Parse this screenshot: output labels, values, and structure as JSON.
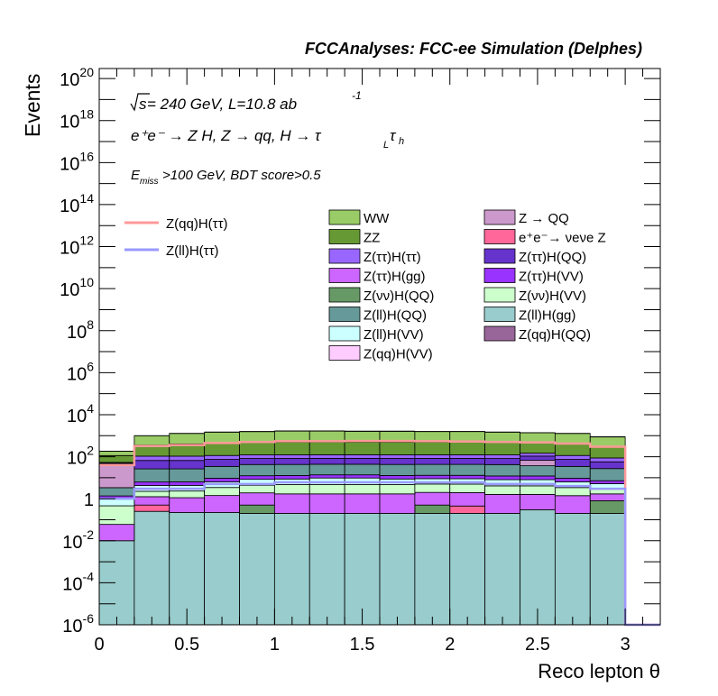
{
  "chart_data": {
    "type": "bar",
    "header": "FCCAnalyses: FCC-ee Simulation (Delphes)",
    "annotations": {
      "line1_sqrt": "s",
      "line1_rest": " = 240 GeV, L=10.8 ab",
      "line1_sup": "-1",
      "line2": "e⁺e⁻ → Z H, Z → qq, H → τ",
      "line2_sub1": "L",
      "line2_tau": "τ",
      "line2_sub2": "h",
      "line3_e": "E",
      "line3_sub": "miss",
      "line3_rest": ">100 GeV, BDT score>0.5"
    },
    "xlabel": "Reco lepton θ",
    "ylabel": "Events",
    "xlim": [
      0,
      3.2
    ],
    "ylim": [
      1e-06,
      3e+20
    ],
    "log_y": true,
    "grid": false,
    "legend_position": "top",
    "x_tick_labels": [
      "0",
      "0.5",
      "1",
      "1.5",
      "2",
      "2.5",
      "3"
    ],
    "x_tick_values": [
      0,
      0.5,
      1,
      1.5,
      2,
      2.5,
      3
    ],
    "y_tick_labels": [
      {
        "base": "10",
        "exp": "-6",
        "value": 1e-06
      },
      {
        "base": "10",
        "exp": "-4",
        "value": 0.0001
      },
      {
        "base": "10",
        "exp": "-2",
        "value": 0.01
      },
      {
        "base": "1",
        "exp": "",
        "value": 1
      },
      {
        "base": "10",
        "exp": "2",
        "value": 100.0
      },
      {
        "base": "10",
        "exp": "4",
        "value": 10000.0
      },
      {
        "base": "10",
        "exp": "6",
        "value": 1000000.0
      },
      {
        "base": "10",
        "exp": "8",
        "value": 100000000.0
      },
      {
        "base": "10",
        "exp": "10",
        "value": 10000000000.0
      },
      {
        "base": "10",
        "exp": "12",
        "value": 1000000000000.0
      },
      {
        "base": "10",
        "exp": "14",
        "value": 100000000000000.0
      },
      {
        "base": "10",
        "exp": "16",
        "value": 1e+16
      },
      {
        "base": "10",
        "exp": "18",
        "value": 1e+18
      },
      {
        "base": "10",
        "exp": "20",
        "value": 1e+20
      }
    ],
    "bin_edges": [
      0,
      0.2,
      0.4,
      0.6,
      0.8,
      1.0,
      1.2,
      1.4,
      1.6,
      1.8,
      2.0,
      2.2,
      2.4,
      2.6,
      2.8,
      3.0,
      3.2
    ],
    "stack_top_values": [
      180,
      1000,
      1300,
      1500,
      1600,
      1700,
      1700,
      1650,
      1650,
      1600,
      1600,
      1500,
      1400,
      1300,
      900,
      0
    ],
    "stack_layers": [
      {
        "name": "Z(ll)H(gg)",
        "color": "#99cccc",
        "values": [
          0.01,
          0.25,
          0.22,
          0.22,
          0.2,
          0.2,
          0.2,
          0.2,
          0.2,
          0.2,
          0.2,
          0.2,
          0.3,
          0.2,
          0.2,
          0
        ]
      },
      {
        "name": "Z(qq)H(QQ)",
        "color": "#996699",
        "values": [
          0,
          0.0003,
          0,
          0,
          0,
          0,
          0,
          0,
          0,
          0,
          0,
          0,
          0,
          0,
          0,
          0
        ]
      },
      {
        "name": "e+e- → νeνe Z",
        "color": "#ff6699",
        "values": [
          0,
          0.25,
          0,
          0,
          0,
          0,
          0,
          0,
          0,
          0,
          0.25,
          0,
          0,
          0,
          0,
          0
        ]
      },
      {
        "name": "Z(νν)H(QQ)",
        "color": "#669966",
        "values": [
          0,
          0,
          0,
          0,
          0.3,
          0,
          0,
          0,
          0,
          0.3,
          0,
          0,
          0,
          0,
          0.6,
          0
        ]
      },
      {
        "name": "Z(ττ)H(gg)",
        "color": "#cc66ff",
        "values": [
          0.05,
          0.75,
          0.9,
          1.2,
          1.4,
          1.5,
          1.5,
          1.5,
          1.5,
          1.5,
          1.5,
          1.4,
          1.3,
          1.2,
          0.9,
          0
        ]
      },
      {
        "name": "Z(νν)H(VV)",
        "color": "#ccffcc",
        "values": [
          0.4,
          1.0,
          1.2,
          2.0,
          2.5,
          3,
          3,
          3,
          3,
          3,
          3,
          2.5,
          2.5,
          2,
          1.5,
          0
        ]
      },
      {
        "name": "Z(ll)H(VV)",
        "color": "#ccffff",
        "values": [
          0.6,
          2,
          2,
          3,
          4,
          4,
          5,
          5,
          4,
          4,
          4,
          4,
          4,
          3,
          2,
          0
        ]
      },
      {
        "name": "Z(ττ)H(VV)",
        "color": "#9933ff",
        "values": [
          0.3,
          2,
          2,
          3,
          4,
          4,
          4,
          4,
          4,
          4,
          4,
          4,
          4,
          3,
          2,
          0
        ]
      },
      {
        "name": "Z(ll)H(QQ)",
        "color": "#669999",
        "values": [
          2,
          20,
          20,
          25,
          30,
          30,
          30,
          30,
          30,
          30,
          30,
          30,
          25,
          25,
          20,
          0
        ]
      },
      {
        "name": "Z → QQ",
        "color": "#cc99cc",
        "values": [
          40,
          0,
          0,
          0,
          0,
          0,
          0,
          0,
          0,
          0,
          0,
          0,
          30,
          0,
          0,
          0
        ]
      },
      {
        "name": "Z(ττ)H(QQ)",
        "color": "#6633cc",
        "values": [
          5,
          40,
          40,
          40,
          40,
          40,
          40,
          40,
          40,
          40,
          40,
          40,
          40,
          40,
          30,
          0
        ]
      },
      {
        "name": "Z(ττ)H(ττ)",
        "color": "#9966ff",
        "values": [
          5,
          40,
          40,
          40,
          40,
          40,
          40,
          40,
          40,
          40,
          40,
          40,
          40,
          40,
          30,
          0
        ]
      },
      {
        "name": "ZZ",
        "color": "#669933",
        "values": [
          60,
          250,
          300,
          350,
          350,
          380,
          380,
          380,
          380,
          380,
          380,
          350,
          330,
          300,
          220,
          0
        ]
      },
      {
        "name": "WW",
        "color": "#99cc66",
        "values": [
          70,
          640,
          860,
          1000,
          1080,
          1150,
          1150,
          1100,
          1100,
          1060,
          1060,
          990,
          900,
          850,
          560,
          0
        ]
      }
    ],
    "line_series": [
      {
        "name": "Z(qq)H(ττ)",
        "color": "#ff9999",
        "values": [
          40,
          320,
          360,
          450,
          500,
          550,
          550,
          560,
          560,
          550,
          530,
          500,
          480,
          420,
          300,
          0
        ]
      },
      {
        "name": "Z(ll)H(ττ)",
        "color": "#9999ff",
        "values": [
          1,
          3,
          3,
          5,
          5,
          6,
          6,
          6,
          6,
          6,
          6,
          5,
          5,
          4,
          3,
          0
        ]
      }
    ],
    "legend_left": [
      {
        "label": "Z(qq)H(ττ)",
        "color": "#ff9999"
      },
      {
        "label": "Z(ll)H(ττ)",
        "color": "#9999ff"
      }
    ],
    "legend_col1": [
      {
        "label": "WW",
        "color": "#99cc66"
      },
      {
        "label": "ZZ",
        "color": "#669933"
      },
      {
        "label": "Z(ττ)H(ττ)",
        "color": "#9966ff"
      },
      {
        "label": "Z(ττ)H(gg)",
        "color": "#cc66ff"
      },
      {
        "label": "Z(νν)H(QQ)",
        "color": "#669966"
      },
      {
        "label": "Z(ll)H(QQ)",
        "color": "#669999"
      },
      {
        "label": "Z(ll)H(VV)",
        "color": "#ccffff"
      },
      {
        "label": "Z(qq)H(VV)",
        "color": "#ffccff"
      }
    ],
    "legend_col2": [
      {
        "label": "Z → QQ",
        "color": "#cc99cc"
      },
      {
        "label": "e⁺e⁻→ νeνe Z",
        "color": "#ff6699"
      },
      {
        "label": "Z(ττ)H(QQ)",
        "color": "#6633cc"
      },
      {
        "label": "Z(ττ)H(VV)",
        "color": "#9933ff"
      },
      {
        "label": "Z(νν)H(VV)",
        "color": "#ccffcc"
      },
      {
        "label": "Z(ll)H(gg)",
        "color": "#99cccc"
      },
      {
        "label": "Z(qq)H(QQ)",
        "color": "#996699"
      }
    ]
  }
}
